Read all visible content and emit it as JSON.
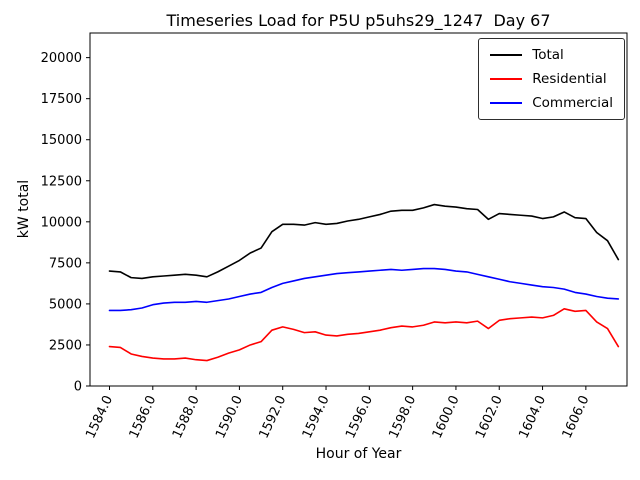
{
  "chart_data": {
    "type": "line",
    "title": "Timeseries Load for P5U p5uhs29_1247  Day 67",
    "xlabel": "Hour of Year",
    "ylabel": "kW total",
    "xlim": [
      1583.1,
      1607.9
    ],
    "ylim": [
      0,
      21500
    ],
    "grid": false,
    "legend_position": "upper right",
    "xticks": [
      1584,
      1586,
      1588,
      1590,
      1592,
      1594,
      1596,
      1598,
      1600,
      1602,
      1604,
      1606
    ],
    "xtick_labels": [
      "1584.0",
      "1586.0",
      "1588.0",
      "1590.0",
      "1592.0",
      "1594.0",
      "1596.0",
      "1598.0",
      "1600.0",
      "1602.0",
      "1604.0",
      "1606.0"
    ],
    "yticks": [
      0,
      2500,
      5000,
      7500,
      10000,
      12500,
      15000,
      17500,
      20000
    ],
    "ytick_labels": [
      "0",
      "2500",
      "5000",
      "7500",
      "10000",
      "12500",
      "15000",
      "17500",
      "20000"
    ],
    "x": [
      1584.0,
      1584.5,
      1585.0,
      1585.5,
      1586.0,
      1586.5,
      1587.0,
      1587.5,
      1588.0,
      1588.5,
      1589.0,
      1589.5,
      1590.0,
      1590.5,
      1591.0,
      1591.5,
      1592.0,
      1592.5,
      1593.0,
      1593.5,
      1594.0,
      1594.5,
      1595.0,
      1595.5,
      1596.0,
      1596.5,
      1597.0,
      1597.5,
      1598.0,
      1598.5,
      1599.0,
      1599.5,
      1600.0,
      1600.5,
      1601.0,
      1601.5,
      1602.0,
      1602.5,
      1603.0,
      1603.5,
      1604.0,
      1604.5,
      1605.0,
      1605.5,
      1606.0,
      1606.5,
      1607.0,
      1607.5
    ],
    "series": [
      {
        "name": "Total",
        "color": "#000000",
        "values": [
          7000,
          6950,
          6600,
          6550,
          6650,
          6700,
          6750,
          6800,
          6750,
          6650,
          6950,
          7300,
          7650,
          8100,
          8400,
          9400,
          9850,
          9850,
          9800,
          9950,
          9850,
          9900,
          10050,
          10150,
          10300,
          10450,
          10650,
          10700,
          10700,
          10850,
          11050,
          10950,
          10900,
          10800,
          10750,
          10150,
          10500,
          10450,
          10400,
          10350,
          10200,
          10300,
          10600,
          10250,
          10200,
          9350,
          8850,
          7700
        ]
      },
      {
        "name": "Residential",
        "color": "#ff0000",
        "values": [
          2400,
          2350,
          1950,
          1800,
          1700,
          1650,
          1650,
          1700,
          1600,
          1550,
          1750,
          2000,
          2200,
          2500,
          2700,
          3400,
          3600,
          3450,
          3250,
          3300,
          3100,
          3050,
          3150,
          3200,
          3300,
          3400,
          3550,
          3650,
          3600,
          3700,
          3900,
          3850,
          3900,
          3850,
          3950,
          3500,
          4000,
          4100,
          4150,
          4200,
          4150,
          4300,
          4700,
          4550,
          4600,
          3900,
          3500,
          2400
        ]
      },
      {
        "name": "Commercial",
        "color": "#0000ff",
        "values": [
          4600,
          4600,
          4650,
          4750,
          4950,
          5050,
          5100,
          5100,
          5150,
          5100,
          5200,
          5300,
          5450,
          5600,
          5700,
          6000,
          6250,
          6400,
          6550,
          6650,
          6750,
          6850,
          6900,
          6950,
          7000,
          7050,
          7100,
          7050,
          7100,
          7150,
          7150,
          7100,
          7000,
          6950,
          6800,
          6650,
          6500,
          6350,
          6250,
          6150,
          6050,
          6000,
          5900,
          5700,
          5600,
          5450,
          5350,
          5300
        ]
      }
    ]
  }
}
